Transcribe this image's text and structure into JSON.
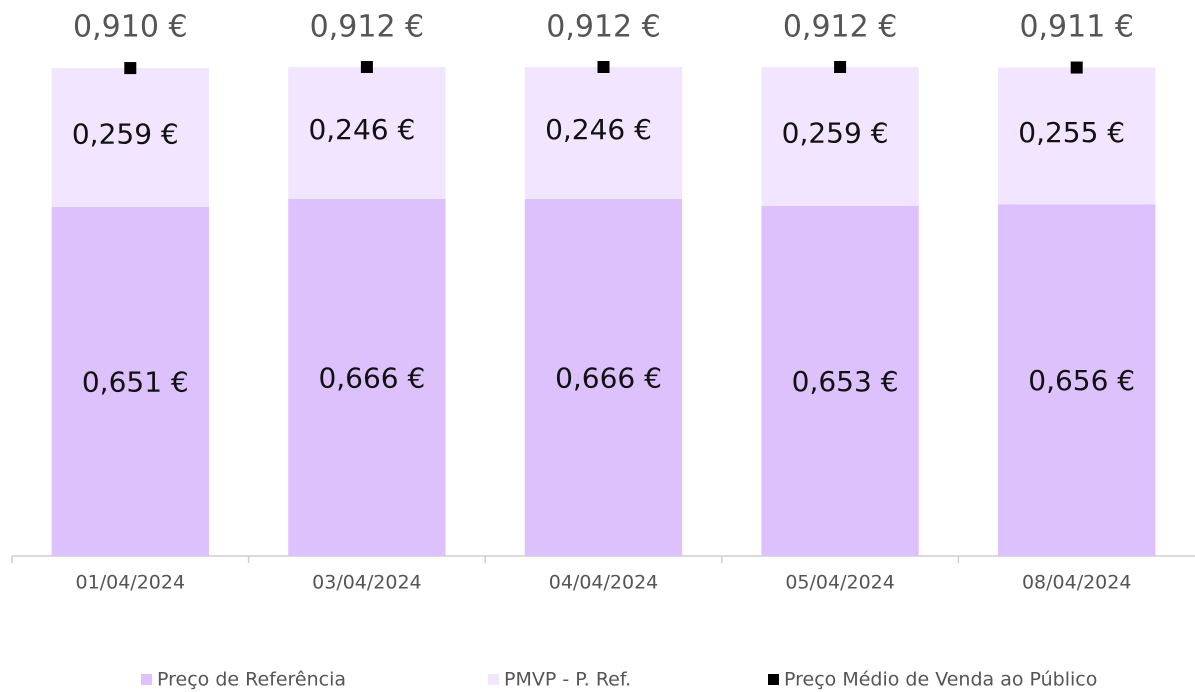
{
  "chart_data": {
    "type": "bar",
    "stacked": true,
    "categories": [
      "01/04/2024",
      "03/04/2024",
      "04/04/2024",
      "05/04/2024",
      "08/04/2024"
    ],
    "series": [
      {
        "name": "Preço de Referência",
        "color": "#dcc1fd",
        "values": [
          0.651,
          0.666,
          0.666,
          0.653,
          0.656
        ],
        "value_labels": [
          "0,651 €",
          "0,666 €",
          "0,666 €",
          "0,653 €",
          "0,656 €"
        ]
      },
      {
        "name": "PMVP - P. Ref.",
        "color": "#f1e5ff",
        "values": [
          0.259,
          0.246,
          0.246,
          0.259,
          0.255
        ],
        "value_labels": [
          "0,259 €",
          "0,246 €",
          "0,246 €",
          "0,259 €",
          "0,255 €"
        ]
      },
      {
        "name": "Preço Médio de Venda ao Público",
        "type": "marker",
        "color": "#000000",
        "values": [
          0.91,
          0.912,
          0.912,
          0.912,
          0.911
        ],
        "value_labels": [
          "0,910 €",
          "0,912 €",
          "0,912 €",
          "0,912 €",
          "0,911 €"
        ]
      }
    ]
  }
}
